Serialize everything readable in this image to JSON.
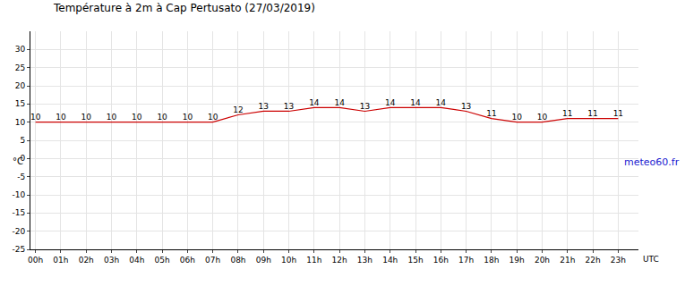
{
  "chart_data": {
    "type": "line",
    "title": "Température à 2m à Cap Pertusato (27/03/2019)",
    "source": "meteo60.fr",
    "xlabel": "UTC",
    "ylabel": "°C",
    "categories": [
      "00h",
      "01h",
      "02h",
      "03h",
      "04h",
      "05h",
      "06h",
      "07h",
      "08h",
      "09h",
      "10h",
      "11h",
      "12h",
      "13h",
      "14h",
      "15h",
      "16h",
      "17h",
      "18h",
      "19h",
      "20h",
      "21h",
      "22h",
      "23h"
    ],
    "values": [
      10,
      10,
      10,
      10,
      10,
      10,
      10,
      10,
      12,
      13,
      13,
      14,
      14,
      13,
      14,
      14,
      14,
      13,
      11,
      10,
      10,
      11,
      11,
      11
    ],
    "color": "#cc0000",
    "ylim": [
      -25,
      35
    ],
    "yticks": [
      -25,
      -20,
      -15,
      -10,
      -5,
      0,
      5,
      10,
      15,
      20,
      25,
      30
    ],
    "grid": true,
    "data_labels": true
  }
}
